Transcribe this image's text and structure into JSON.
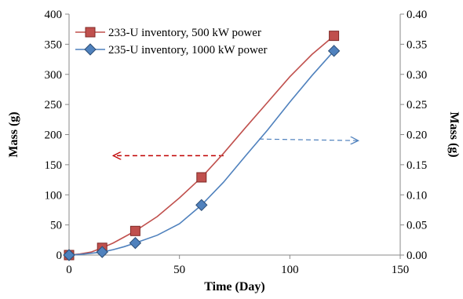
{
  "chart_data": {
    "type": "line",
    "xlabel": "Time (Day)",
    "ylabel_left": "Mass (g)",
    "ylabel_right": "Mass (g)",
    "xlim": [
      0,
      150
    ],
    "ylim_left": [
      0,
      400
    ],
    "ylim_right": [
      0,
      0.4
    ],
    "xticks": [
      "0",
      "50",
      "100",
      "150"
    ],
    "yticks_left": [
      "0",
      "50",
      "100",
      "150",
      "200",
      "250",
      "300",
      "350",
      "400"
    ],
    "yticks_right": [
      "0.00",
      "0.05",
      "0.10",
      "0.15",
      "0.20",
      "0.25",
      "0.30",
      "0.35",
      "0.40"
    ],
    "grid": false,
    "legend_position": "top-left",
    "series": [
      {
        "name": "233-U inventory, 500 kW power",
        "axis": "left",
        "marker": "square",
        "color": "#c0504d",
        "marker_fill": "#c0504d",
        "x": [
          0,
          15,
          30,
          60,
          120
        ],
        "y": [
          0,
          12,
          40,
          129,
          364
        ],
        "curve_x": [
          0,
          5,
          10,
          15,
          20,
          25,
          30,
          40,
          50,
          60,
          70,
          80,
          90,
          100,
          110,
          120
        ],
        "curve_y": [
          0,
          2,
          5,
          12,
          20,
          30,
          40,
          64,
          95,
          129,
          169,
          212,
          254,
          296,
          333,
          364
        ]
      },
      {
        "name": "235-U inventory, 1000 kW power",
        "axis": "right",
        "marker": "diamond",
        "color": "#4f81bd",
        "marker_fill": "#4f81bd",
        "x": [
          0,
          15,
          30,
          60,
          120
        ],
        "y": [
          0,
          0.005,
          0.02,
          0.083,
          0.339
        ],
        "curve_x": [
          0,
          5,
          10,
          15,
          20,
          25,
          30,
          40,
          50,
          60,
          70,
          80,
          90,
          100,
          110,
          120
        ],
        "curve_y": [
          0,
          0.001,
          0.003,
          0.005,
          0.009,
          0.014,
          0.02,
          0.033,
          0.052,
          0.083,
          0.121,
          0.165,
          0.208,
          0.254,
          0.298,
          0.339
        ]
      }
    ],
    "annotations": [
      {
        "type": "arrow",
        "direction": "left",
        "style": "dashed",
        "color": "#c00000",
        "points_to_axis": "left"
      },
      {
        "type": "arrow",
        "direction": "right",
        "style": "dashed",
        "color": "#4f81bd",
        "points_to_axis": "right"
      }
    ]
  }
}
